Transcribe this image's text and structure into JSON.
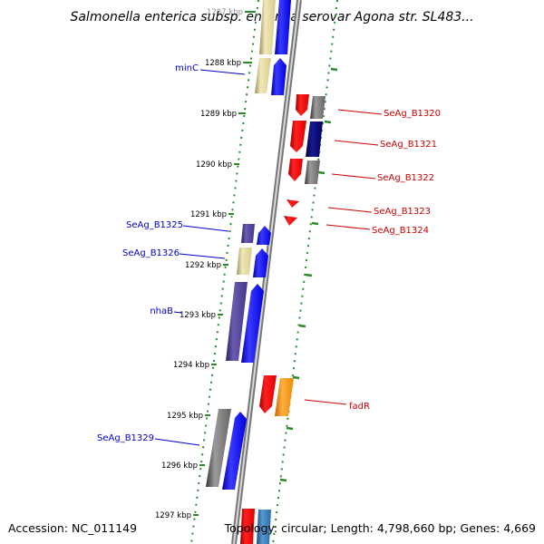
{
  "title": "Salmonella enterica subsp. enterica serovar Agona str. SL483...",
  "footer": {
    "accession": "Accession: NC_011149",
    "topology": "Topology: circular; Length: 4,798,660 bp; Genes: 4,669"
  },
  "colors": {
    "left_label": "#0000cc",
    "right_label": "#cc0000",
    "backbone": "#888888",
    "dots": "#2a8a2a"
  },
  "ticks": [
    {
      "label": "1287 kbp"
    },
    {
      "label": "1288 kbp"
    },
    {
      "label": "1289 kbp"
    },
    {
      "label": "1290 kbp"
    },
    {
      "label": "1291 kbp"
    },
    {
      "label": "1292 kbp"
    },
    {
      "label": "1293 kbp"
    },
    {
      "label": "1294 kbp"
    },
    {
      "label": "1295 kbp"
    },
    {
      "label": "1296 kbp"
    },
    {
      "label": "1297 kbp"
    }
  ],
  "labels_left": [
    {
      "text": "minC"
    },
    {
      "text": "SeAg_B1325"
    },
    {
      "text": "SeAg_B1326"
    },
    {
      "text": "nhaB"
    },
    {
      "text": "SeAg_B1329"
    }
  ],
  "labels_right": [
    {
      "text": "SeAg_B1320"
    },
    {
      "text": "SeAg_B1321"
    },
    {
      "text": "SeAg_B1322"
    },
    {
      "text": "SeAg_B1323"
    },
    {
      "text": "SeAg_B1324"
    },
    {
      "text": "fadR"
    }
  ]
}
